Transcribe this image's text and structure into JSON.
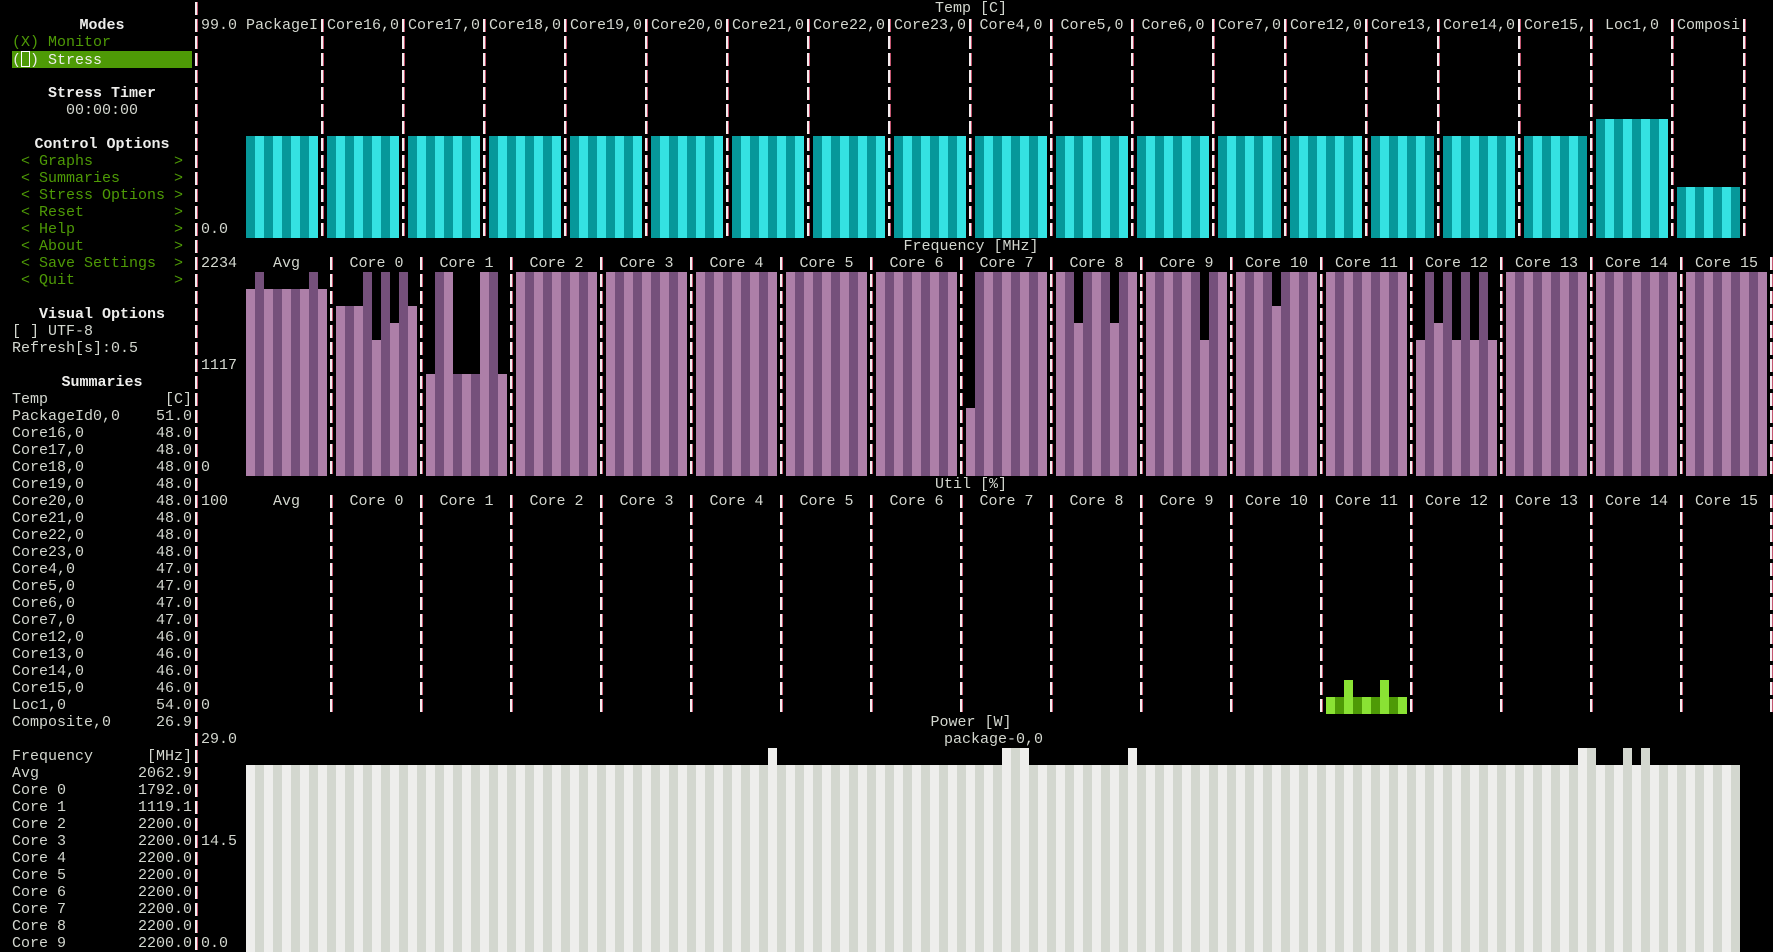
{
  "sidebar": {
    "modes_title": "Modes",
    "monitor": {
      "marker": "(X)",
      "label": "Monitor"
    },
    "stress": {
      "label": "Stress"
    },
    "stress_timer_title": "Stress Timer",
    "stress_timer_value": "00:00:00",
    "control_options_title": "Control Options",
    "control_options": [
      "Graphs",
      "Summaries",
      "Stress Options",
      "Reset",
      "Help",
      "About",
      "Save Settings",
      "Quit"
    ],
    "visual_options_title": "Visual Options",
    "utf8_checkbox": "[ ] UTF-8",
    "refresh": "Refresh[s]:0.5",
    "summaries_title": "Summaries",
    "temp_summary": {
      "title": "Temp",
      "unit": "[C]",
      "rows": [
        {
          "name": "PackageId0,0",
          "value": "51.0"
        },
        {
          "name": "Core16,0",
          "value": "48.0"
        },
        {
          "name": "Core17,0",
          "value": "48.0"
        },
        {
          "name": "Core18,0",
          "value": "48.0"
        },
        {
          "name": "Core19,0",
          "value": "48.0"
        },
        {
          "name": "Core20,0",
          "value": "48.0"
        },
        {
          "name": "Core21,0",
          "value": "48.0"
        },
        {
          "name": "Core22,0",
          "value": "48.0"
        },
        {
          "name": "Core23,0",
          "value": "48.0"
        },
        {
          "name": "Core4,0",
          "value": "47.0"
        },
        {
          "name": "Core5,0",
          "value": "47.0"
        },
        {
          "name": "Core6,0",
          "value": "47.0"
        },
        {
          "name": "Core7,0",
          "value": "47.0"
        },
        {
          "name": "Core12,0",
          "value": "46.0"
        },
        {
          "name": "Core13,0",
          "value": "46.0"
        },
        {
          "name": "Core14,0",
          "value": "46.0"
        },
        {
          "name": "Core15,0",
          "value": "46.0"
        },
        {
          "name": "Loc1,0",
          "value": "54.0"
        },
        {
          "name": "Composite,0",
          "value": "26.9"
        }
      ]
    },
    "freq_summary": {
      "title": "Frequency",
      "unit": "[MHz]",
      "rows": [
        {
          "name": "Avg",
          "value": "2062.9"
        },
        {
          "name": "Core 0",
          "value": "1792.0"
        },
        {
          "name": "Core 1",
          "value": "1119.1"
        },
        {
          "name": "Core 2",
          "value": "2200.0"
        },
        {
          "name": "Core 3",
          "value": "2200.0"
        },
        {
          "name": "Core 4",
          "value": "2200.0"
        },
        {
          "name": "Core 5",
          "value": "2200.0"
        },
        {
          "name": "Core 6",
          "value": "2200.0"
        },
        {
          "name": "Core 7",
          "value": "2200.0"
        },
        {
          "name": "Core 8",
          "value": "2200.0"
        },
        {
          "name": "Core 9",
          "value": "2200.0"
        }
      ]
    }
  },
  "temp": {
    "title": "Temp [C]",
    "max_label": "99.0",
    "min_label": "0.0",
    "max": 99,
    "colors": {
      "light": "#34e2e2",
      "dark": "#06989a"
    },
    "groups": [
      {
        "label": "PackageI",
        "history": [
          51,
          51,
          51,
          51,
          51,
          51,
          51,
          51
        ]
      },
      {
        "label": "Core16,0",
        "history": [
          48,
          48,
          48,
          48,
          48,
          48,
          48,
          48
        ]
      },
      {
        "label": "Core17,0",
        "history": [
          48,
          48,
          48,
          48,
          48,
          48,
          48,
          48
        ]
      },
      {
        "label": "Core18,0",
        "history": [
          48,
          48,
          48,
          48,
          48,
          48,
          48,
          48
        ]
      },
      {
        "label": "Core19,0",
        "history": [
          48,
          48,
          48,
          48,
          48,
          48,
          48,
          48
        ]
      },
      {
        "label": "Core20,0",
        "history": [
          48,
          48,
          48,
          48,
          48,
          48,
          48,
          48
        ]
      },
      {
        "label": "Core21,0",
        "history": [
          48,
          48,
          48,
          48,
          48,
          48,
          48,
          48
        ]
      },
      {
        "label": "Core22,0",
        "history": [
          48,
          48,
          48,
          48,
          48,
          48,
          48,
          48
        ]
      },
      {
        "label": "Core23,0",
        "history": [
          48,
          48,
          48,
          48,
          48,
          48,
          48,
          48
        ]
      },
      {
        "label": "Core4,0",
        "history": [
          47,
          47,
          47,
          47,
          47,
          47,
          47,
          47
        ]
      },
      {
        "label": "Core5,0",
        "history": [
          47,
          47,
          47,
          47,
          47,
          47,
          47,
          47
        ]
      },
      {
        "label": "Core6,0",
        "history": [
          47,
          47,
          47,
          47,
          47,
          47,
          47,
          47
        ]
      },
      {
        "label": "Core7,0",
        "history": [
          47,
          47,
          47,
          47,
          47,
          47,
          47
        ]
      },
      {
        "label": "Core12,0",
        "history": [
          46,
          46,
          46,
          46,
          46,
          46,
          46,
          46
        ]
      },
      {
        "label": "Core13,",
        "history": [
          46,
          46,
          46,
          46,
          46,
          46,
          46
        ]
      },
      {
        "label": "Core14,0",
        "history": [
          46,
          46,
          46,
          46,
          46,
          46,
          46,
          46
        ]
      },
      {
        "label": "Core15,",
        "history": [
          46,
          46,
          46,
          46,
          46,
          46,
          46
        ]
      },
      {
        "label": "Loc1,0",
        "history": [
          54,
          54,
          54,
          54,
          54,
          54,
          54,
          54
        ]
      },
      {
        "label": "Composi",
        "history": [
          26.9,
          26.9,
          26.9,
          26.9,
          26.9,
          26.9,
          26.9
        ]
      }
    ]
  },
  "freq": {
    "title": "Frequency [MHz]",
    "max_label": "2234",
    "mid_label": "1117",
    "min_label": "0",
    "max": 2234,
    "colors": {
      "light": "#ad7fa8",
      "dark": "#75507b"
    },
    "groups": [
      {
        "label": "Avg",
        "history": [
          2048,
          2200,
          2048,
          2048,
          2048,
          2048,
          2048,
          2200,
          2048
        ]
      },
      {
        "label": "Core 0",
        "history": [
          1862,
          1862,
          1862,
          2200,
          1489,
          2200,
          1675,
          2200,
          1862
        ]
      },
      {
        "label": "Core 1",
        "history": [
          1117,
          2200,
          2200,
          1117,
          1117,
          1117,
          2200,
          2200,
          1117
        ]
      },
      {
        "label": "Core 2",
        "history": [
          2200,
          2200,
          2200,
          2200,
          2200,
          2200,
          2200,
          2200,
          2200
        ]
      },
      {
        "label": "Core 3",
        "history": [
          2200,
          2200,
          2200,
          2200,
          2200,
          2200,
          2200,
          2200,
          2200
        ]
      },
      {
        "label": "Core 4",
        "history": [
          2200,
          2200,
          2200,
          2200,
          2200,
          2200,
          2200,
          2200,
          2200
        ]
      },
      {
        "label": "Core 5",
        "history": [
          2200,
          2200,
          2200,
          2200,
          2200,
          2200,
          2200,
          2200,
          2200
        ]
      },
      {
        "label": "Core 6",
        "history": [
          2200,
          2200,
          2200,
          2200,
          2200,
          2200,
          2200,
          2200,
          2200
        ]
      },
      {
        "label": "Core 7",
        "history": [
          812,
          2200,
          2200,
          2200,
          2200,
          2200,
          2200,
          2200,
          2200
        ]
      },
      {
        "label": "Core 8",
        "history": [
          2200,
          2200,
          1611,
          2200,
          2200,
          2200,
          1611,
          2200,
          2200
        ]
      },
      {
        "label": "Core 9",
        "history": [
          2200,
          2200,
          2200,
          2200,
          2200,
          2200,
          1413,
          2200,
          2200
        ]
      },
      {
        "label": "Core 10",
        "history": [
          2200,
          2200,
          2200,
          2200,
          1810,
          2200,
          2200,
          2200,
          2200
        ]
      },
      {
        "label": "Core 11",
        "history": [
          2200,
          2200,
          2200,
          2200,
          2200,
          2200,
          2200,
          2200,
          2200
        ]
      },
      {
        "label": "Core 12",
        "history": [
          1413,
          2200,
          1611,
          2200,
          1413,
          2200,
          1413,
          2200,
          1413
        ]
      },
      {
        "label": "Core 13",
        "history": [
          2200,
          2200,
          2200,
          2200,
          2200,
          2200,
          2200,
          2200,
          2200
        ]
      },
      {
        "label": "Core 14",
        "history": [
          2200,
          2200,
          2200,
          2200,
          2200,
          2200,
          2200,
          2200,
          2200
        ]
      },
      {
        "label": "Core 15",
        "history": [
          2200,
          2200,
          2200,
          2200,
          2200,
          2200,
          2200,
          2200,
          2200
        ]
      }
    ]
  },
  "util": {
    "title": "Util [%]",
    "max_label": "100",
    "min_label": "0",
    "max": 100,
    "colors": {
      "light": "#8ae234",
      "dark": "#4e9a06"
    },
    "groups": [
      {
        "label": "Avg",
        "history": [
          0,
          0,
          0,
          0,
          0,
          0,
          0,
          0,
          0
        ]
      },
      {
        "label": "Core 0",
        "history": [
          0,
          0,
          0,
          0,
          0,
          0,
          0,
          0,
          0
        ]
      },
      {
        "label": "Core 1",
        "history": [
          0,
          0,
          0,
          0,
          0,
          0,
          0,
          0,
          0
        ]
      },
      {
        "label": "Core 2",
        "history": [
          0,
          0,
          0,
          0,
          0,
          0,
          0,
          0,
          0
        ]
      },
      {
        "label": "Core 3",
        "history": [
          0,
          0,
          0,
          0,
          0,
          0,
          0,
          0,
          0
        ]
      },
      {
        "label": "Core 4",
        "history": [
          0,
          0,
          0,
          0,
          0,
          0,
          0,
          0,
          0
        ]
      },
      {
        "label": "Core 5",
        "history": [
          0,
          0,
          0,
          0,
          0,
          0,
          0,
          0,
          0
        ]
      },
      {
        "label": "Core 6",
        "history": [
          0,
          0,
          0,
          0,
          0,
          0,
          0,
          0,
          0
        ]
      },
      {
        "label": "Core 7",
        "history": [
          0,
          0,
          0,
          0,
          0,
          0,
          0,
          0,
          0
        ]
      },
      {
        "label": "Core 8",
        "history": [
          0,
          0,
          0,
          0,
          0,
          0,
          0,
          0,
          0
        ]
      },
      {
        "label": "Core 9",
        "history": [
          0,
          0,
          0,
          0,
          0,
          0,
          0,
          0,
          0
        ]
      },
      {
        "label": "Core 10",
        "history": [
          0,
          0,
          0,
          0,
          0,
          0,
          0,
          0,
          0
        ]
      },
      {
        "label": "Core 11",
        "history": [
          8.3,
          8.3,
          16.7,
          8.3,
          8.3,
          8.3,
          16.7,
          8.3,
          8.3
        ]
      },
      {
        "label": "Core 12",
        "history": [
          0,
          0,
          0,
          0,
          0,
          0,
          0,
          0,
          0
        ]
      },
      {
        "label": "Core 13",
        "history": [
          0,
          0,
          0,
          0,
          0,
          0,
          0,
          0,
          0
        ]
      },
      {
        "label": "Core 14",
        "history": [
          0,
          0,
          0,
          0,
          0,
          0,
          0,
          0,
          0
        ]
      },
      {
        "label": "Core 15",
        "history": [
          0,
          0,
          0,
          0,
          0,
          0,
          0,
          0,
          0
        ]
      }
    ]
  },
  "power": {
    "title": "Power [W]",
    "series_label": "package-0,0",
    "max_label": "29.0",
    "mid_label": "14.5",
    "min_label": "0.0",
    "max": 29,
    "colors": {
      "light": "#eeeeec",
      "dark": "#d3d7cf"
    },
    "baseline": 26.6,
    "samples": 166,
    "spikes": {
      "value": 29,
      "indices": [
        58,
        84,
        85,
        86,
        98,
        148,
        149,
        153,
        155
      ]
    }
  }
}
